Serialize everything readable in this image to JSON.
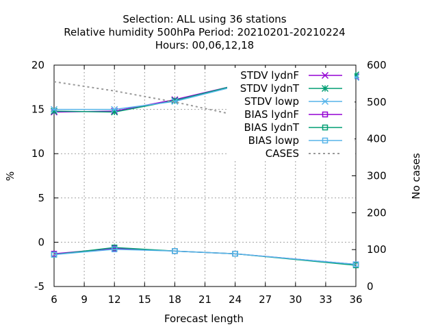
{
  "title_lines": [
    "Selection: ALL using    36 stations",
    "Relative humidity 500hPa   Period: 20210201-20210224",
    "Hours:  00,06,12,18"
  ],
  "chart_data": {
    "type": "line",
    "xlabel": "Forecast length",
    "ylabel": "%",
    "y2label": "No cases",
    "x": [
      6,
      12,
      18,
      24,
      36
    ],
    "xlim": [
      6,
      36
    ],
    "xticks": [
      "6",
      "9",
      "12",
      "15",
      "18",
      "21",
      "24",
      "27",
      "30",
      "33",
      "36"
    ],
    "ylim": [
      -5,
      20
    ],
    "yticks": [
      "-5",
      "0",
      "5",
      "10",
      "15",
      "20"
    ],
    "y2lim": [
      0,
      600
    ],
    "y2ticks": [
      "0",
      "100",
      "200",
      "300",
      "400",
      "500",
      "600"
    ],
    "grid": true,
    "legend_position": "top-right",
    "series": [
      {
        "name": "STDV lydnF",
        "axis": "y1",
        "color": "#9400d3",
        "marker": "x",
        "dash": false,
        "values": [
          14.7,
          14.8,
          16.1,
          17.7,
          18.7
        ]
      },
      {
        "name": "STDV lydnT",
        "axis": "y1",
        "color": "#009e73",
        "marker": "star",
        "dash": false,
        "values": [
          14.8,
          14.7,
          16.0,
          17.7,
          18.9
        ]
      },
      {
        "name": "STDV lowp",
        "axis": "y1",
        "color": "#56b4e9",
        "marker": "asterisk",
        "dash": false,
        "values": [
          15.0,
          15.0,
          15.9,
          17.6,
          18.6
        ]
      },
      {
        "name": "BIAS lydnF",
        "axis": "y1",
        "color": "#9400d3",
        "marker": "square",
        "dash": false,
        "values": [
          -1.3,
          -0.7,
          -1.0,
          -1.3,
          -2.5
        ]
      },
      {
        "name": "BIAS lydnT",
        "axis": "y1",
        "color": "#009e73",
        "marker": "square",
        "dash": false,
        "values": [
          -1.4,
          -0.6,
          -1.0,
          -1.3,
          -2.6
        ]
      },
      {
        "name": "BIAS lowp",
        "axis": "y1",
        "color": "#56b4e9",
        "marker": "square",
        "dash": false,
        "values": [
          -1.4,
          -0.8,
          -1.0,
          -1.3,
          -2.5
        ]
      },
      {
        "name": "CASES",
        "axis": "y2",
        "color": "#999999",
        "marker": "none",
        "dash": true,
        "values": [
          555,
          530,
          500,
          465,
          395
        ]
      }
    ]
  }
}
